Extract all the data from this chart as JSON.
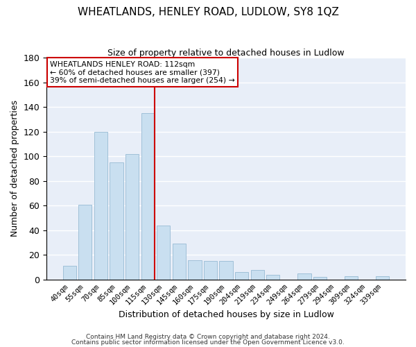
{
  "title": "WHEATLANDS, HENLEY ROAD, LUDLOW, SY8 1QZ",
  "subtitle": "Size of property relative to detached houses in Ludlow",
  "xlabel": "Distribution of detached houses by size in Ludlow",
  "ylabel": "Number of detached properties",
  "bar_labels": [
    "40sqm",
    "55sqm",
    "70sqm",
    "85sqm",
    "100sqm",
    "115sqm",
    "130sqm",
    "145sqm",
    "160sqm",
    "175sqm",
    "190sqm",
    "204sqm",
    "219sqm",
    "234sqm",
    "249sqm",
    "264sqm",
    "279sqm",
    "294sqm",
    "309sqm",
    "324sqm",
    "339sqm"
  ],
  "bar_values": [
    11,
    61,
    120,
    95,
    102,
    135,
    44,
    29,
    16,
    15,
    15,
    6,
    8,
    4,
    0,
    5,
    2,
    0,
    3,
    0,
    3
  ],
  "bar_color": "#c9dff0",
  "bar_edge_color": "#a0c0d8",
  "vline_bar_index": 5,
  "vline_color": "#cc0000",
  "ylim": [
    0,
    180
  ],
  "yticks": [
    0,
    20,
    40,
    60,
    80,
    100,
    120,
    140,
    160,
    180
  ],
  "annotation_title": "WHEATLANDS HENLEY ROAD: 112sqm",
  "annotation_line1": "← 60% of detached houses are smaller (397)",
  "annotation_line2": "39% of semi-detached houses are larger (254) →",
  "box_facecolor": "#ffffff",
  "box_edgecolor": "#cc0000",
  "footer1": "Contains HM Land Registry data © Crown copyright and database right 2024.",
  "footer2": "Contains public sector information licensed under the Open Government Licence v3.0.",
  "bg_color": "#ffffff",
  "plot_bg_color": "#e8eef8"
}
